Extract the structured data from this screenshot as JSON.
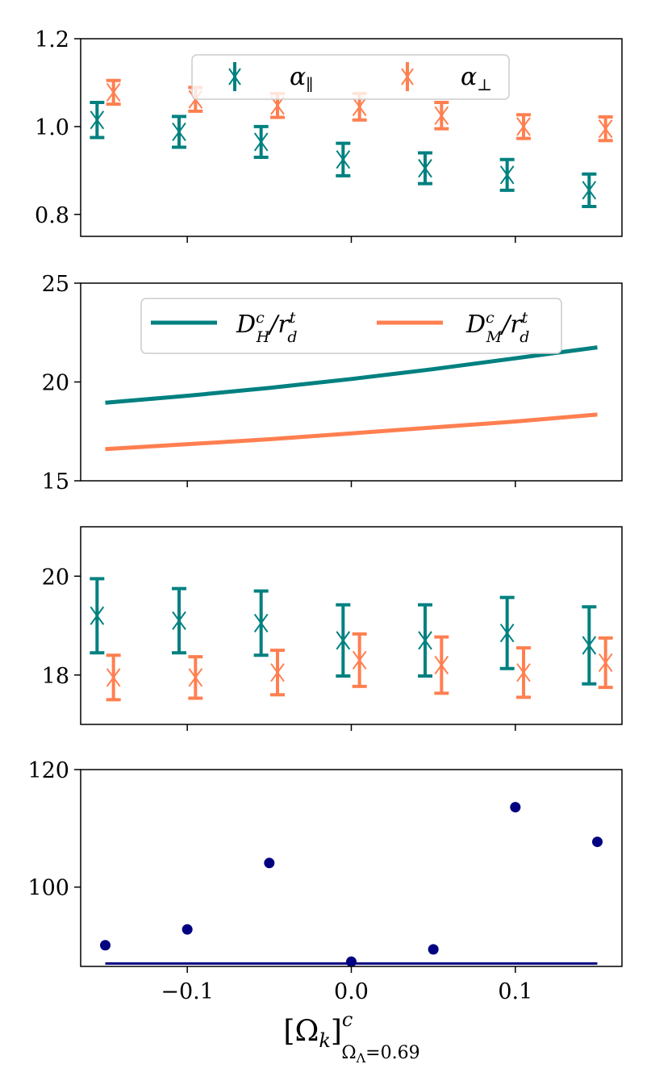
{
  "colors": {
    "teal": "#008080",
    "orange": "#FF7F50",
    "navy": "#000080",
    "frame": "#000000"
  },
  "xlabel": {
    "main": "[Ω",
    "sub_k": "k",
    "close": "]",
    "sup": "c",
    "sub": "Ω",
    "sub_lambda": "Λ",
    "sub_value": "=0.69"
  },
  "x_ticks": [
    {
      "label": "−0.1",
      "value": -0.1
    },
    {
      "label": "0.0",
      "value": 0.0
    },
    {
      "label": "0.1",
      "value": 0.1
    }
  ],
  "chart_data": [
    {
      "type": "scatter",
      "id": "alpha",
      "xlim": [
        -0.165,
        0.165
      ],
      "ylim": [
        0.75,
        1.2
      ],
      "yticks": [
        {
          "label": "0.8",
          "value": 0.8
        },
        {
          "label": "1.0",
          "value": 1.0
        },
        {
          "label": "1.2",
          "value": 1.2
        }
      ],
      "legend": {
        "position": "upper center",
        "alpha": 0.8,
        "entries": [
          {
            "text": "α∥",
            "base": "α",
            "sub": "∥",
            "color": "#008080"
          },
          {
            "text": "α⊥",
            "base": "α",
            "sub": "⊥",
            "color": "#FF7F50"
          }
        ]
      },
      "series": [
        {
          "name": "α∥",
          "color": "#008080",
          "x": [
            -0.155,
            -0.105,
            -0.055,
            -0.005,
            0.045,
            0.095,
            0.145
          ],
          "y": [
            1.015,
            0.988,
            0.965,
            0.925,
            0.905,
            0.89,
            0.855
          ],
          "err": [
            0.04,
            0.035,
            0.035,
            0.037,
            0.035,
            0.035,
            0.037
          ]
        },
        {
          "name": "α⊥",
          "color": "#FF7F50",
          "x": [
            -0.145,
            -0.095,
            -0.045,
            0.005,
            0.055,
            0.105,
            0.155
          ],
          "y": [
            1.078,
            1.062,
            1.048,
            1.045,
            1.025,
            1.0,
            0.995
          ],
          "err": [
            0.027,
            0.027,
            0.027,
            0.03,
            0.03,
            0.027,
            0.027
          ]
        }
      ]
    },
    {
      "type": "line",
      "id": "distances",
      "xlim": [
        -0.165,
        0.165
      ],
      "ylim": [
        15,
        25
      ],
      "yticks": [
        {
          "label": "15",
          "value": 15
        },
        {
          "label": "20",
          "value": 20
        },
        {
          "label": "25",
          "value": 25
        }
      ],
      "legend": {
        "position": "upper center",
        "entries": [
          {
            "text": "D_H^c/r_d^t",
            "base": "D",
            "sub": "H",
            "sup": "c",
            "tail": "/r",
            "tail_sub": "d",
            "tail_sup": "t",
            "color": "#008080"
          },
          {
            "text": "D_M^c/r_d^t",
            "base": "D",
            "sub": "M",
            "sup": "c",
            "tail": "/r",
            "tail_sub": "d",
            "tail_sup": "t",
            "color": "#FF7F50"
          }
        ]
      },
      "series": [
        {
          "name": "D_H^c/r_d^t",
          "color": "#008080",
          "x": [
            -0.15,
            -0.1,
            -0.05,
            0.0,
            0.05,
            0.1,
            0.15
          ],
          "y": [
            18.95,
            19.3,
            19.7,
            20.15,
            20.65,
            21.2,
            21.75
          ]
        },
        {
          "name": "D_M^c/r_d^t",
          "color": "#FF7F50",
          "x": [
            -0.15,
            -0.1,
            -0.05,
            0.0,
            0.05,
            0.1,
            0.15
          ],
          "y": [
            16.6,
            16.85,
            17.1,
            17.4,
            17.7,
            18.0,
            18.35
          ]
        }
      ]
    },
    {
      "type": "scatter",
      "id": "measurements",
      "xlim": [
        -0.165,
        0.165
      ],
      "ylim": [
        17.0,
        21.0
      ],
      "yticks": [
        {
          "label": "18",
          "value": 18
        },
        {
          "label": "20",
          "value": 20
        }
      ],
      "series": [
        {
          "name": "teal",
          "color": "#008080",
          "x": [
            -0.155,
            -0.105,
            -0.055,
            -0.005,
            0.045,
            0.095,
            0.145
          ],
          "y": [
            19.2,
            19.1,
            19.05,
            18.7,
            18.7,
            18.85,
            18.6
          ],
          "err": [
            0.75,
            0.65,
            0.65,
            0.72,
            0.72,
            0.72,
            0.78
          ]
        },
        {
          "name": "orange",
          "color": "#FF7F50",
          "x": [
            -0.145,
            -0.095,
            -0.045,
            0.005,
            0.055,
            0.105,
            0.155
          ],
          "y": [
            17.95,
            17.95,
            18.05,
            18.3,
            18.2,
            18.05,
            18.25
          ],
          "err": [
            0.45,
            0.42,
            0.45,
            0.53,
            0.57,
            0.5,
            0.5
          ]
        }
      ]
    },
    {
      "type": "scatter",
      "id": "chi2",
      "xlim": [
        -0.165,
        0.165
      ],
      "ylim": [
        86.5,
        120
      ],
      "yticks": [
        {
          "label": "100",
          "value": 100
        },
        {
          "label": "120",
          "value": 120
        }
      ],
      "series": [
        {
          "name": "points",
          "color": "#000080",
          "x": [
            -0.15,
            -0.1,
            -0.05,
            0.0,
            0.05,
            0.1,
            0.15
          ],
          "y": [
            90.1,
            92.8,
            104.1,
            87.3,
            89.4,
            113.6,
            107.7
          ]
        }
      ],
      "hline": {
        "y": 87.0,
        "xmin": -0.15,
        "xmax": 0.15,
        "color": "#000080"
      }
    }
  ]
}
